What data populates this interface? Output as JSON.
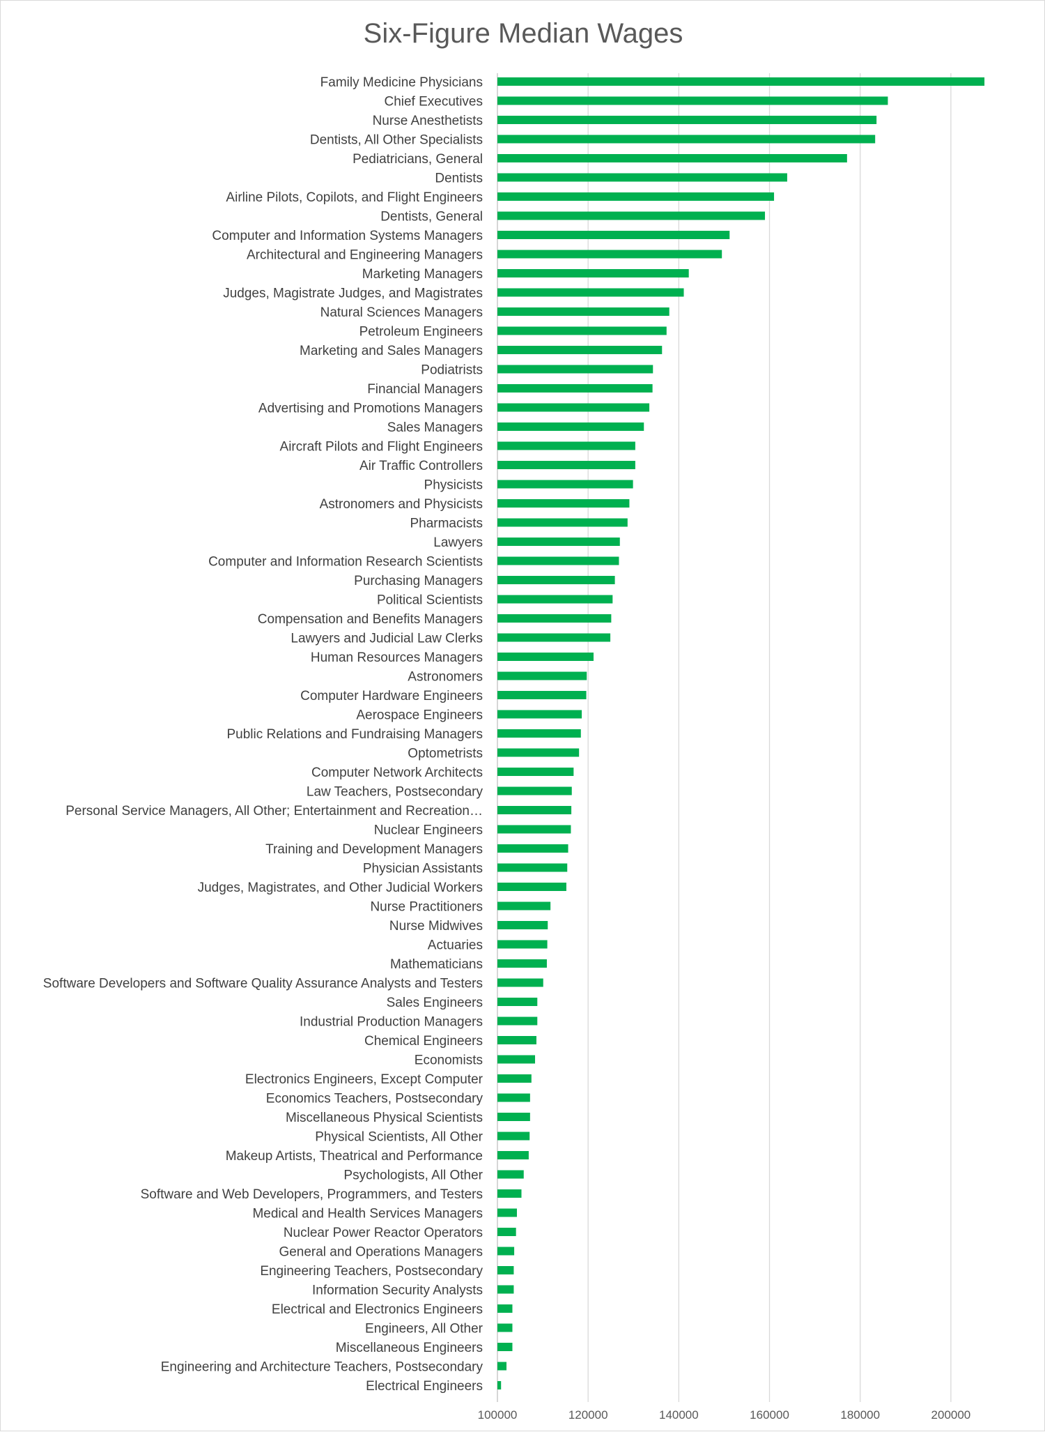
{
  "chart_data": {
    "type": "bar",
    "orientation": "horizontal",
    "title": "Six-Figure Median Wages",
    "xlabel": "",
    "ylabel": "",
    "xlim": [
      100000,
      210000
    ],
    "xticks": [
      100000,
      120000,
      140000,
      160000,
      180000,
      200000
    ],
    "grid": true,
    "legend": "none",
    "bar_color": "#00B050",
    "categories": [
      "Family Medicine Physicians",
      "Chief Executives",
      "Nurse Anesthetists",
      "Dentists, All Other Specialists",
      "Pediatricians, General",
      "Dentists",
      "Airline Pilots, Copilots, and Flight Engineers",
      "Dentists, General",
      "Computer and Information Systems Managers",
      "Architectural and Engineering Managers",
      "Marketing Managers",
      "Judges, Magistrate Judges, and Magistrates",
      "Natural Sciences Managers",
      "Petroleum Engineers",
      "Marketing and Sales Managers",
      "Podiatrists",
      "Financial Managers",
      "Advertising and Promotions Managers",
      "Sales Managers",
      "Aircraft Pilots and Flight Engineers",
      "Air Traffic Controllers",
      "Physicists",
      "Astronomers and Physicists",
      "Pharmacists",
      "Lawyers",
      "Computer and Information Research Scientists",
      "Purchasing Managers",
      "Political Scientists",
      "Compensation and Benefits Managers",
      "Lawyers and Judicial Law Clerks",
      "Human Resources Managers",
      "Astronomers",
      "Computer Hardware Engineers",
      "Aerospace Engineers",
      "Public Relations and Fundraising Managers",
      "Optometrists",
      "Computer Network Architects",
      "Law Teachers, Postsecondary",
      "Personal Service Managers, All Other; Entertainment and Recreation…",
      "Nuclear Engineers",
      "Training and Development Managers",
      "Physician Assistants",
      "Judges, Magistrates, and Other Judicial Workers",
      "Nurse Practitioners",
      "Nurse Midwives",
      "Actuaries",
      "Mathematicians",
      "Software Developers and Software Quality Assurance Analysts and Testers",
      "Sales Engineers",
      "Industrial Production Managers",
      "Chemical Engineers",
      "Economists",
      "Electronics Engineers, Except Computer",
      "Economics Teachers, Postsecondary",
      "Miscellaneous Physical Scientists",
      "Physical Scientists, All Other",
      "Makeup Artists, Theatrical and Performance",
      "Psychologists, All Other",
      "Software and Web Developers, Programmers, and Testers",
      "Medical and Health Services Managers",
      "Nuclear Power Reactor Operators",
      "General and Operations Managers",
      "Engineering Teachers, Postsecondary",
      "Information Security Analysts",
      "Electrical and Electronics Engineers",
      "Engineers, All Other",
      "Miscellaneous Engineers",
      "Engineering and Architecture Teachers, Postsecondary",
      "Electrical Engineers"
    ],
    "values": [
      207400,
      186100,
      183600,
      183300,
      177100,
      163900,
      161000,
      159000,
      151200,
      149500,
      142200,
      141100,
      137900,
      137300,
      136300,
      134300,
      134200,
      133500,
      132300,
      130400,
      130400,
      129900,
      129100,
      128700,
      127000,
      126800,
      125900,
      125400,
      125100,
      124900,
      121200,
      119700,
      119600,
      118600,
      118400,
      118000,
      116800,
      116400,
      116300,
      116200,
      115600,
      115400,
      115200,
      111700,
      111100,
      111000,
      110900,
      110100,
      108800,
      108800,
      108600,
      108300,
      107500,
      107200,
      107200,
      107100,
      106900,
      105800,
      105300,
      104300,
      104100,
      103700,
      103600,
      103600,
      103300,
      103300,
      103300,
      102000,
      100800
    ]
  }
}
